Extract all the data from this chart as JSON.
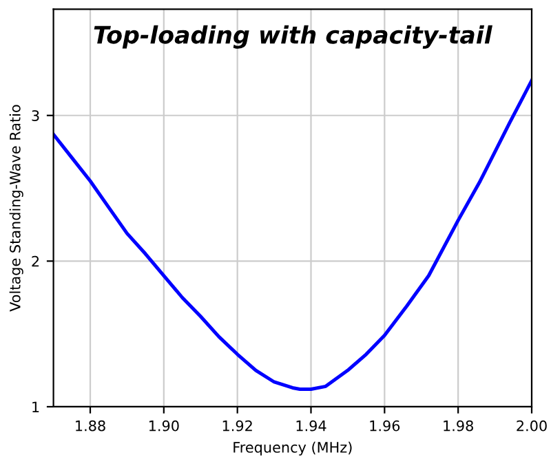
{
  "chart_data": {
    "type": "line",
    "title": "Top-loading with capacity-tail",
    "xlabel": "Frequency (MHz)",
    "ylabel": "Voltage Standing-Wave Ratio",
    "x": [
      1.87,
      1.875,
      1.88,
      1.885,
      1.89,
      1.895,
      1.9,
      1.905,
      1.91,
      1.915,
      1.92,
      1.925,
      1.93,
      1.935,
      1.937,
      1.94,
      1.944,
      1.95,
      1.955,
      1.96,
      1.966,
      1.972,
      1.98,
      1.986,
      1.994,
      2.0
    ],
    "series": [
      {
        "color": "#0000ff",
        "values": [
          2.87,
          2.71,
          2.55,
          2.37,
          2.19,
          2.05,
          1.9,
          1.75,
          1.62,
          1.48,
          1.36,
          1.25,
          1.17,
          1.13,
          1.12,
          1.12,
          1.14,
          1.25,
          1.36,
          1.49,
          1.69,
          1.9,
          2.28,
          2.55,
          2.95,
          3.24
        ]
      }
    ],
    "xlim": [
      1.87,
      2.0
    ],
    "ylim": [
      1,
      3.73
    ],
    "xticks": [
      1.88,
      {
        "value": 1.9,
        "label": "1.90"
      },
      1.92,
      1.94,
      1.96,
      1.98,
      {
        "value": 2.0,
        "label": "2.00"
      }
    ],
    "yticks": [
      1,
      2,
      3
    ],
    "grid": true,
    "legend": false,
    "marker": "none",
    "line_style": "solid"
  }
}
